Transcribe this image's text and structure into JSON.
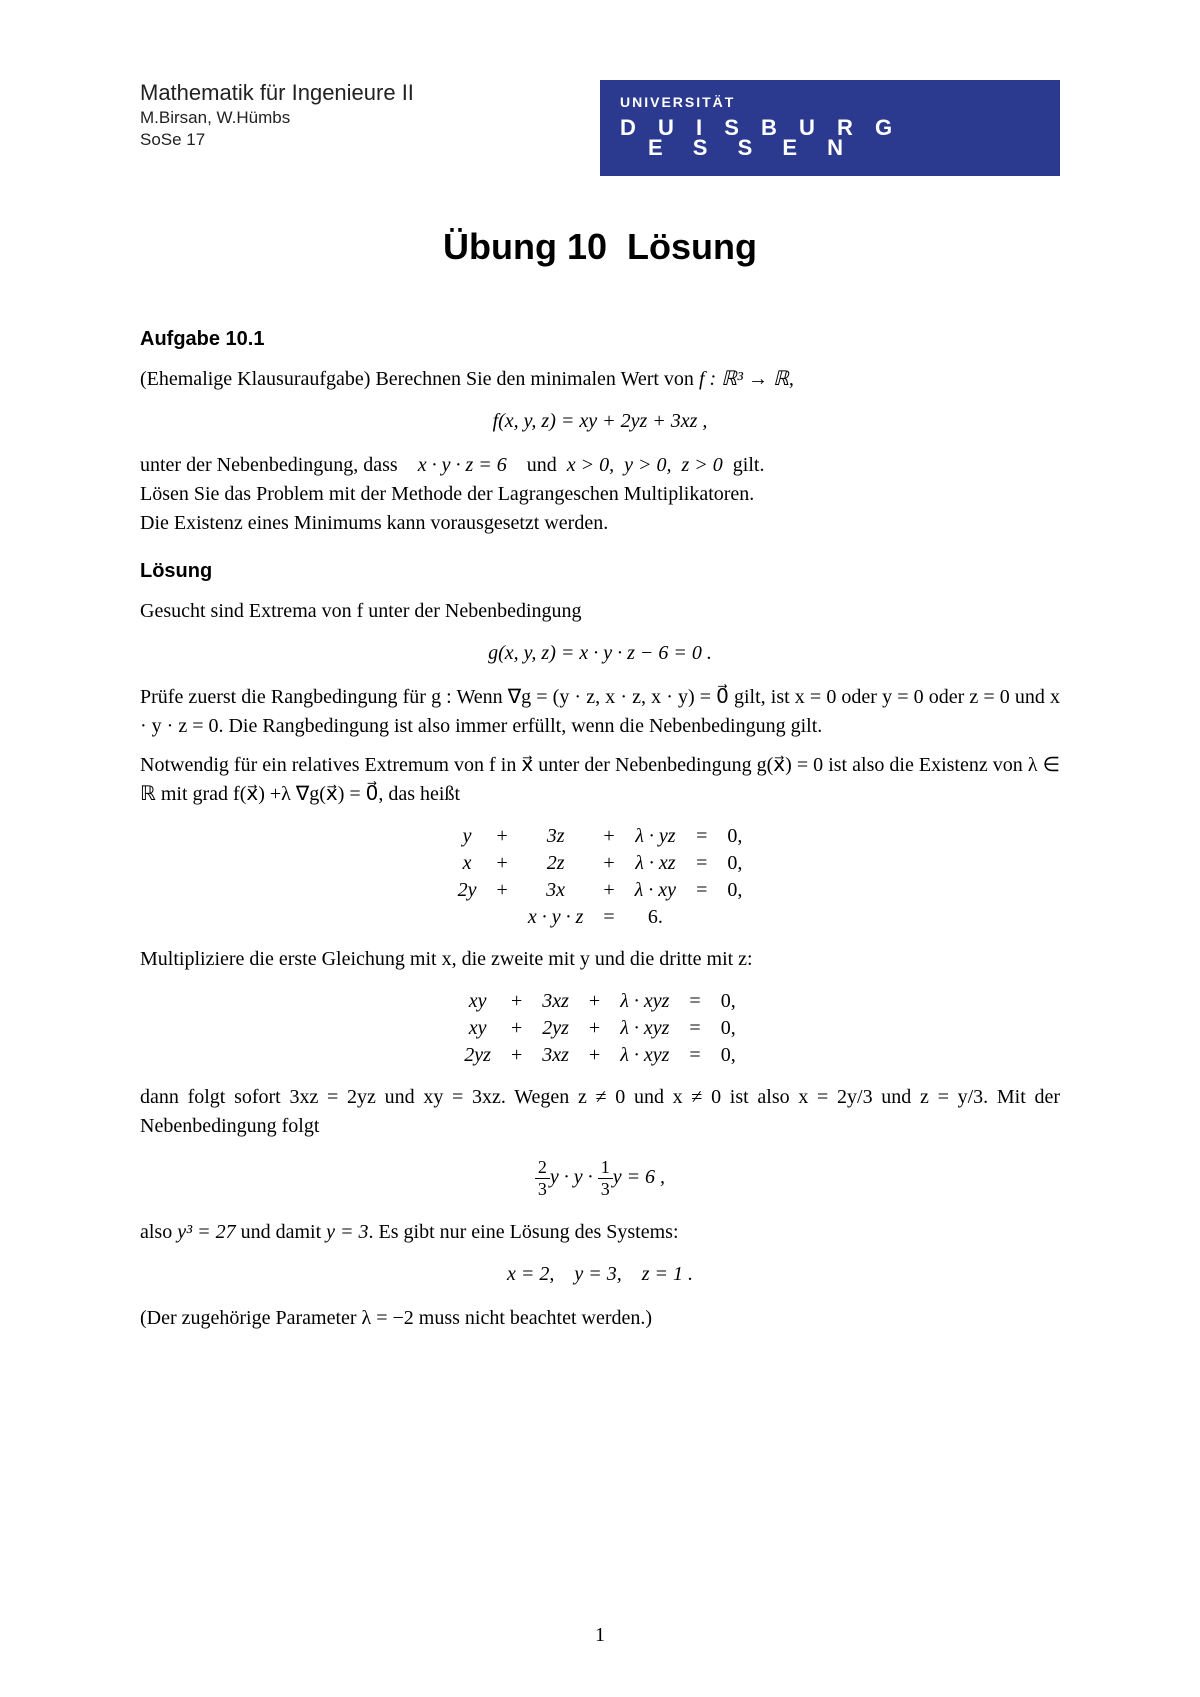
{
  "header": {
    "course": "Mathematik für Ingenieure II",
    "authors": "M.Birsan, W.Hümbs",
    "semester": "SoSe 17",
    "univ_label": "UNIVERSITÄT",
    "univ_line1": "D U I S B U R G",
    "univ_line2": "E S S E N"
  },
  "title": "Übung 10  Lösung",
  "task_heading": "Aufgabe 10.1",
  "body": {
    "p1_prefix": "(Ehemalige Klausuraufgabe) Berechnen Sie den minimalen Wert von ",
    "p1_math": "f : ℝ³ → ℝ,",
    "eq_f": "f(x, y, z) = xy + 2yz + 3xz ,",
    "p2_prefix": "unter der Nebenbedingung, dass ",
    "p2_math1": "x · y · z = 6",
    "p2_mid": "und",
    "p2_math2": "x > 0,  y > 0,  z > 0",
    "p2_suffix": "gilt.",
    "p2_line2": "Lösen Sie das Problem mit der Methode der Lagrangeschen Multiplikatoren.",
    "p2_line3": "Die Existenz eines Minimums kann vorausgesetzt werden."
  },
  "solution_heading": "Lösung",
  "sol": {
    "p1": "Gesucht sind Extrema von f unter der Nebenbedingung",
    "eq_g": "g(x, y, z) = x · y · z − 6 = 0 .",
    "p2": "Prüfe zuerst die Rangbedingung für g : Wenn ∇g = (y · z, x · z, x · y) = 0⃗ gilt, ist x = 0 oder y = 0 oder z = 0 und x · y · z = 0. Die Rangbedingung ist also immer erfüllt, wenn die Nebenbedingung gilt.",
    "p3": "Notwendig für ein relatives Extremum von f in x⃗ unter der Nebenbedingung g(x⃗) = 0 ist also die Existenz von λ ∈ ℝ mit grad f(x⃗) +λ ∇g(x⃗) = 0⃗, das heißt",
    "system1": [
      [
        "y",
        "+",
        "3z",
        "+",
        "λ · yz",
        "=",
        "0,"
      ],
      [
        "x",
        "+",
        "2z",
        "+",
        "λ · xz",
        "=",
        "0,"
      ],
      [
        "2y",
        "+",
        "3x",
        "+",
        "λ · xy",
        "=",
        "0,"
      ],
      [
        "",
        "",
        "x · y · z",
        "=",
        "6.",
        "",
        ""
      ]
    ],
    "p4": "Multipliziere die erste Gleichung mit x, die zweite mit y und die dritte mit z:",
    "system2": [
      [
        "xy",
        "+",
        "3xz",
        "+",
        "λ · xyz",
        "=",
        "0,"
      ],
      [
        "xy",
        "+",
        "2yz",
        "+",
        "λ · xyz",
        "=",
        "0,"
      ],
      [
        "2yz",
        "+",
        "3xz",
        "+",
        "λ · xyz",
        "=",
        "0,"
      ]
    ],
    "p5": "dann folgt sofort 3xz = 2yz und xy = 3xz. Wegen z ≠ 0 und x ≠ 0 ist also x = 2y/3 und z = y/3. Mit der Nebenbedingung folgt",
    "frac_eq": {
      "f1n": "2",
      "f1d": "3",
      "mid": "y · y ·",
      "f2n": "1",
      "f2d": "3",
      "end": "y = 6 ,"
    },
    "p6_prefix": "also ",
    "p6_math": "y³ = 27",
    "p6_mid": " und damit ",
    "p6_math2": "y = 3",
    "p6_suffix": ". Es gibt nur eine Lösung des Systems:",
    "eq_sol": "x = 2, y = 3, z = 1 .",
    "p7": "(Der zugehörige Parameter λ = −2 muss nicht beachtet werden.)"
  },
  "page_number": "1",
  "colors": {
    "header_bg": "#2b3a8f",
    "text": "#000000"
  }
}
